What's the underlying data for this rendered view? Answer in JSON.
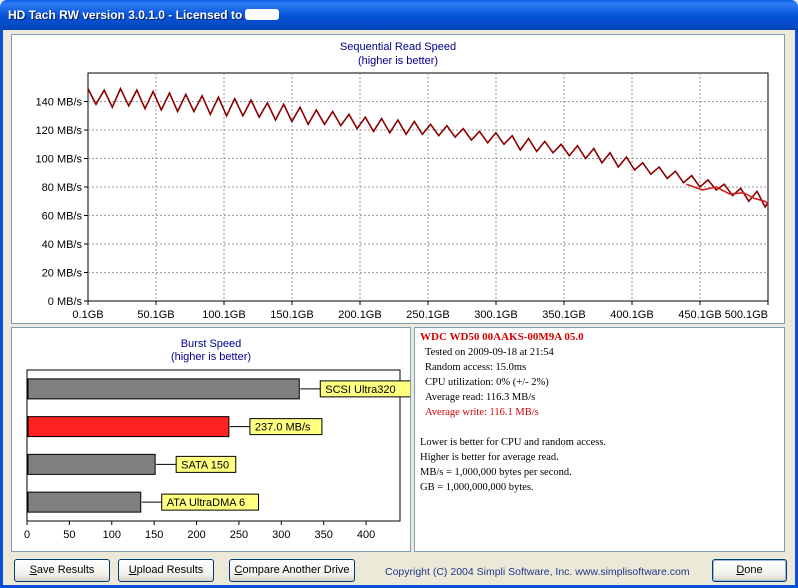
{
  "window": {
    "title": "HD Tach RW version 3.0.1.0 - Licensed to"
  },
  "sequential": {
    "title": "Sequential Read Speed",
    "subtitle": "(higher is better)"
  },
  "burst": {
    "title": "Burst Speed",
    "subtitle": "(higher is better)"
  },
  "info": {
    "drive_name": "WDC WD50 00AAKS-00M9A 05.0",
    "tested_on": "Tested on 2009-09-18 at 21:54",
    "random_access": "Random access: 15.0ms",
    "cpu_utilization": "CPU utilization: 0% (+/- 2%)",
    "average_read": "Average read: 116.3 MB/s",
    "average_write": "Average write: 116.1 MB/s",
    "notes": [
      "Lower is better for CPU and random access.",
      "Higher is better for average read.",
      "MB/s = 1,000,000 bytes per second.",
      "GB = 1,000,000,000 bytes."
    ]
  },
  "buttons": {
    "save_hot": "S",
    "save_rest": "ave Results",
    "upload_hot": "U",
    "upload_rest": "pload Results",
    "compare_hot": "C",
    "compare_rest": "ompare Another Drive",
    "done_hot": "D",
    "done_rest": "one"
  },
  "copyright": "Copyright (C) 2004 Simpli Software, Inc. www.simplisoftware.com",
  "colors": {
    "read_line": "#8b0000",
    "write_line": "#d42020",
    "burst_bar": "#ff2020",
    "reference_bar": "#808080",
    "label_box": "#ffff80"
  },
  "chart_data": [
    {
      "type": "line",
      "title": "Sequential Read Speed",
      "subtitle": "(higher is better)",
      "xlabel": "",
      "ylabel": "",
      "x_ticks": [
        "0.1GB",
        "50.1GB",
        "100.1GB",
        "150.1GB",
        "200.1GB",
        "250.1GB",
        "300.1GB",
        "350.1GB",
        "400.1GB",
        "450.1GB",
        "500.1GB"
      ],
      "y_ticks": [
        "0 MB/s",
        "20 MB/s",
        "40 MB/s",
        "60 MB/s",
        "80 MB/s",
        "100 MB/s",
        "120 MB/s",
        "140 MB/s"
      ],
      "xlim": [
        0.1,
        500.1
      ],
      "ylim": [
        0,
        160
      ],
      "grid": true,
      "series": [
        {
          "name": "",
          "x": [
            0.1,
            6,
            12,
            18,
            24,
            30,
            36,
            42,
            48,
            54,
            60,
            66,
            72,
            78,
            84,
            90,
            96,
            102,
            108,
            114,
            120,
            126,
            132,
            138,
            144,
            150,
            156,
            162,
            168,
            174,
            180,
            186,
            192,
            198,
            204,
            210,
            216,
            222,
            228,
            234,
            240,
            246,
            252,
            258,
            264,
            270,
            276,
            282,
            288,
            294,
            300,
            306,
            312,
            318,
            324,
            330,
            336,
            342,
            348,
            354,
            360,
            366,
            372,
            378,
            384,
            390,
            396,
            402,
            408,
            414,
            420,
            426,
            432,
            438,
            444,
            450,
            456,
            462,
            468,
            474,
            480,
            486,
            492,
            498,
            500.1
          ],
          "values": [
            149,
            138,
            148,
            136,
            149,
            137,
            148,
            135,
            147,
            134,
            146,
            133,
            145,
            133,
            144,
            131,
            143,
            130,
            142,
            130,
            141,
            129,
            139,
            127,
            138,
            126,
            136,
            124,
            134,
            124,
            133,
            123,
            131,
            121,
            129,
            119,
            128,
            118,
            127,
            117,
            126,
            117,
            124,
            116,
            123,
            115,
            121,
            113,
            119,
            111,
            118,
            110,
            116,
            106,
            114,
            105,
            112,
            104,
            110,
            102,
            109,
            100,
            107,
            97,
            104,
            94,
            101,
            92,
            97,
            89,
            94,
            86,
            91,
            83,
            88,
            80,
            85,
            78,
            82,
            74,
            79,
            70,
            77,
            66,
            69
          ]
        },
        {
          "name": "",
          "x": [
            440,
            452,
            462,
            472,
            482,
            490,
            498,
            500.1
          ],
          "values": [
            82,
            78,
            80,
            75,
            76,
            72,
            70,
            68
          ]
        }
      ]
    },
    {
      "type": "bar",
      "title": "Burst Speed",
      "subtitle": "(higher is better)",
      "xlabel": "",
      "ylabel": "",
      "orientation": "horizontal",
      "categories": [
        "SCSI Ultra320",
        "237.0 MB/s",
        "SATA 150",
        "ATA UltraDMA 6"
      ],
      "values": [
        320,
        237,
        150,
        133
      ],
      "x_ticks": [
        "0",
        "50",
        "100",
        "150",
        "200",
        "250",
        "300",
        "350",
        "400"
      ],
      "xlim": [
        0,
        440
      ],
      "grid": false
    }
  ]
}
